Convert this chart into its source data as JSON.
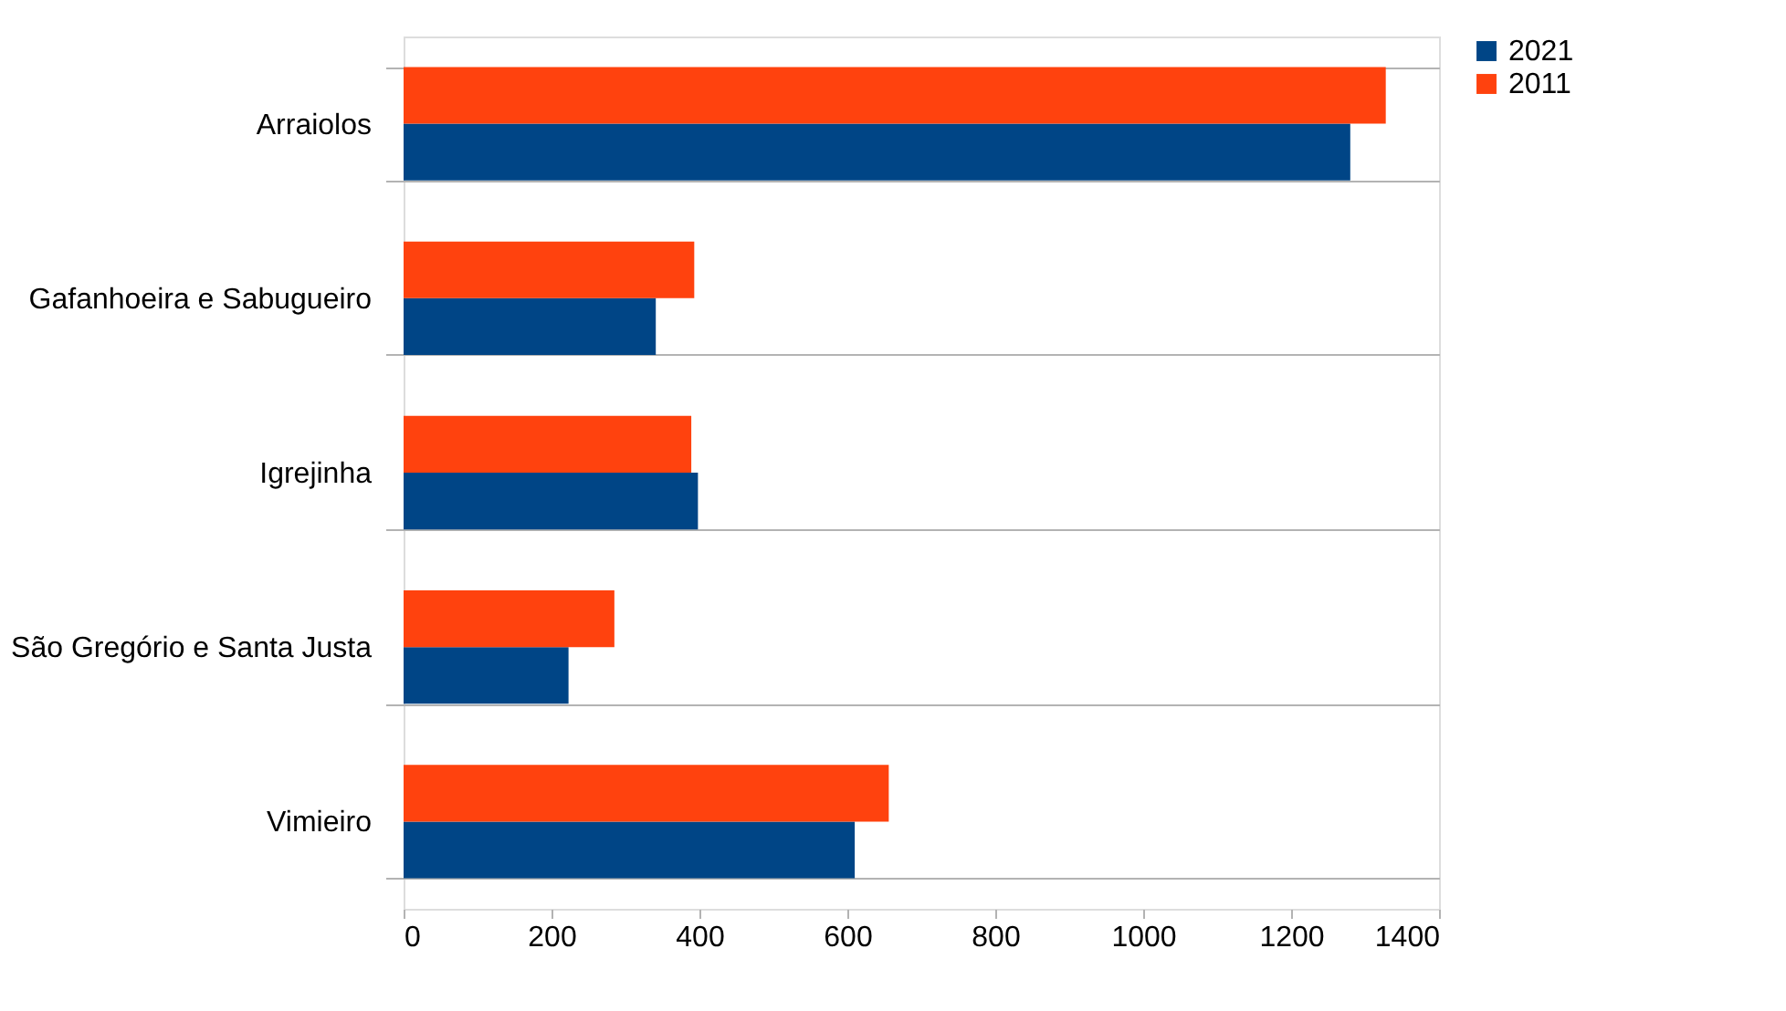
{
  "chart_data": {
    "type": "bar",
    "orientation": "horizontal",
    "categories": [
      "Arraiolos",
      "Gafanhoeira e Sabugueiro",
      "Igrejinha",
      "São Gregório e Santa Justa",
      "Vimieiro"
    ],
    "series": [
      {
        "name": "2021",
        "color": "#004586",
        "values": [
          1280,
          341,
          398,
          223,
          610
        ]
      },
      {
        "name": "2011",
        "color": "#ff420e",
        "values": [
          1328,
          393,
          389,
          285,
          656
        ]
      }
    ],
    "xlim": [
      0,
      1400
    ],
    "xticks": [
      0,
      200,
      400,
      600,
      800,
      1000,
      1200,
      1400
    ],
    "grid": "y",
    "legend": "right"
  }
}
